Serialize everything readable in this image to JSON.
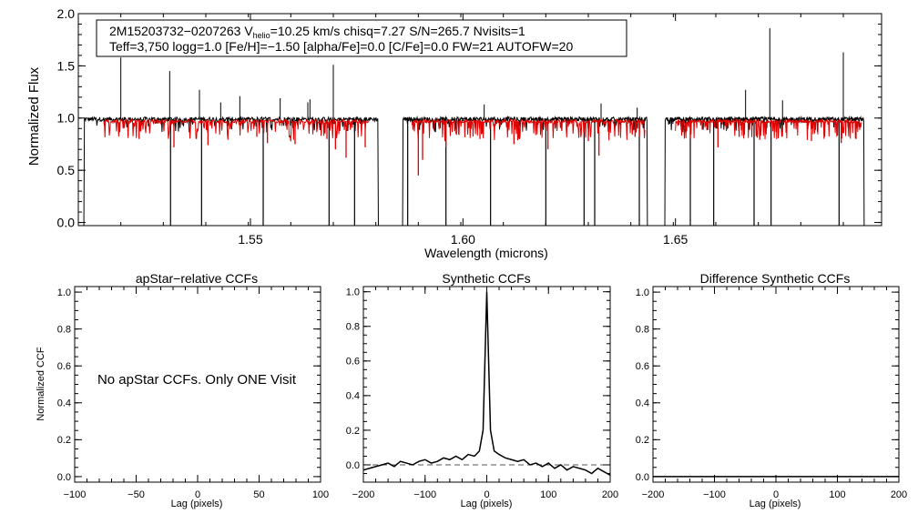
{
  "header": {
    "line1_star": "2M15203732−0207263",
    "line1_v_prefix": "V",
    "line1_v_sub": "helio",
    "line1_rest": "=10.25 km/s  chisq=7.27  S/N=265.7  Nvisits=1",
    "line2": "Teff=3,750 logg=1.0 [Fe/H]=−1.50 [alpha/Fe]=0.0 [C/Fe]=0.0 FW=21 AUTOFW=20"
  },
  "no_ccf_message": "No apStar CCFs.  Only ONE Visit",
  "colors": {
    "observed": "#000000",
    "model": "#e00000",
    "frame": "#000000",
    "dashed": "#555555"
  },
  "chart_data": [
    {
      "type": "line",
      "title": "",
      "xlabel": "Wavelength (microns)",
      "ylabel": "Normalized Flux",
      "xlim": [
        1.5095,
        1.6985
      ],
      "ylim": [
        -0.03,
        2.0
      ],
      "xticks": [
        1.55,
        1.6,
        1.65
      ],
      "xtick_labels": [
        "1.55",
        "1.60",
        "1.65"
      ],
      "yticks": [
        0.0,
        0.5,
        1.0,
        1.5,
        2.0
      ],
      "ytick_labels": [
        "0.0",
        "0.5",
        "1.0",
        "1.5",
        "2.0"
      ],
      "chips": [
        [
          1.5108,
          1.5801
        ],
        [
          1.5858,
          1.6434
        ],
        [
          1.6475,
          1.6944
        ]
      ],
      "series": [
        {
          "continuum": 0.99,
          "spikes": [
            [
              1.5195,
              1.58
            ],
            [
              1.531,
              1.45
            ],
            [
              1.538,
              1.27
            ],
            [
              1.543,
              1.15
            ],
            [
              1.5475,
              1.21
            ],
            [
              1.557,
              1.19
            ],
            [
              1.5635,
              1.15
            ],
            [
              1.5695,
              1.51
            ],
            [
              1.564,
              1.18
            ],
            [
              1.605,
              1.13
            ],
            [
              1.6325,
              1.14
            ],
            [
              1.641,
              1.1
            ],
            [
              1.6665,
              1.27
            ],
            [
              1.6722,
              1.86
            ],
            [
              1.6752,
              1.17
            ],
            [
              1.6895,
              1.63
            ]
          ],
          "bad_pixels": [
            1.5312,
            1.5385,
            1.553,
            1.5685,
            1.5745,
            1.587,
            1.596,
            1.6065,
            1.6195,
            1.6285,
            1.631,
            1.6415,
            1.6535,
            1.659,
            1.6685,
            1.6725,
            1.6885
          ]
        },
        {
          "range_by_chip": [
            [
              1.5155,
              1.5778
            ],
            [
              1.588,
              1.6428
            ],
            [
              1.65,
              1.6938
            ]
          ],
          "continuum": 0.97,
          "deep_absorptions": [
            [
              1.5238,
              0.8
            ],
            [
              1.532,
              0.72
            ],
            [
              1.54,
              0.74
            ],
            [
              1.5515,
              0.82
            ],
            [
              1.554,
              0.76
            ],
            [
              1.5605,
              0.75
            ],
            [
              1.568,
              0.8
            ],
            [
              1.57,
              0.7
            ],
            [
              1.5725,
              0.62
            ],
            [
              1.577,
              0.72
            ],
            [
              1.5895,
              0.45
            ],
            [
              1.5905,
              0.6
            ],
            [
              1.596,
              0.72
            ],
            [
              1.604,
              0.8
            ],
            [
              1.612,
              0.75
            ],
            [
              1.62,
              0.7
            ],
            [
              1.6295,
              0.78
            ],
            [
              1.632,
              0.64
            ],
            [
              1.6405,
              0.82
            ],
            [
              1.6535,
              0.8
            ],
            [
              1.66,
              0.72
            ],
            [
              1.665,
              0.82
            ],
            [
              1.682,
              0.78
            ],
            [
              1.689,
              0.76
            ],
            [
              1.6925,
              0.8
            ]
          ]
        }
      ]
    },
    {
      "type": "line",
      "title": "apStar−relative CCFs",
      "xlabel": "Lag (pixels)",
      "ylabel": "Normalized CCF",
      "xlim": [
        -100,
        100
      ],
      "ylim": [
        -0.03,
        1.03
      ],
      "xticks": [
        -100,
        -50,
        0,
        50,
        100
      ],
      "xtick_labels": [
        "−100",
        "−50",
        "0",
        "50",
        "100"
      ],
      "yticks": [
        0.0,
        0.2,
        0.4,
        0.6,
        0.8,
        1.0
      ],
      "ytick_labels": [
        "0.0",
        "0.2",
        "0.4",
        "0.6",
        "0.8",
        "1.0"
      ],
      "series": []
    },
    {
      "type": "line",
      "title": "Synthetic CCFs",
      "xlabel": "Lag (pixels)",
      "ylabel": "",
      "xlim": [
        -200,
        200
      ],
      "ylim": [
        -0.1,
        1.03
      ],
      "xticks": [
        -200,
        -100,
        0,
        100,
        200
      ],
      "xtick_labels": [
        "−200",
        "−100",
        "0",
        "100",
        "200"
      ],
      "yticks": [
        0.0,
        0.2,
        0.4,
        0.6,
        0.8,
        1.0
      ],
      "ytick_labels": [
        "0.0",
        "0.2",
        "0.4",
        "0.6",
        "0.8",
        "1.0"
      ],
      "reference_line": 0.0,
      "series": [
        {
          "x": [
            -200,
            -190,
            -180,
            -170,
            -160,
            -150,
            -140,
            -130,
            -120,
            -110,
            -100,
            -90,
            -80,
            -70,
            -60,
            -50,
            -40,
            -30,
            -20,
            -12,
            -6,
            -3,
            0,
            3,
            6,
            12,
            20,
            30,
            40,
            50,
            60,
            70,
            80,
            90,
            100,
            110,
            120,
            130,
            140,
            150,
            160,
            170,
            180,
            190,
            200
          ],
          "y": [
            -0.03,
            -0.02,
            -0.01,
            0.0,
            0.01,
            -0.01,
            0.02,
            0.01,
            0.0,
            0.02,
            0.03,
            0.01,
            0.02,
            0.04,
            0.03,
            0.05,
            0.03,
            0.06,
            0.05,
            0.08,
            0.2,
            0.6,
            1.0,
            0.6,
            0.2,
            0.08,
            0.06,
            0.04,
            0.03,
            0.02,
            0.03,
            0.0,
            0.01,
            -0.01,
            0.01,
            -0.02,
            0.0,
            -0.03,
            -0.01,
            -0.02,
            -0.03,
            -0.05,
            -0.02,
            -0.04,
            -0.06
          ]
        }
      ]
    },
    {
      "type": "line",
      "title": "Difference Synthetic CCFs",
      "xlabel": "Lag (pixels)",
      "ylabel": "",
      "xlim": [
        -200,
        200
      ],
      "ylim": [
        -0.03,
        1.03
      ],
      "xticks": [
        -200,
        -100,
        0,
        100,
        200
      ],
      "xtick_labels": [
        "−200",
        "−100",
        "0",
        "100",
        "200"
      ],
      "yticks": [
        0.0,
        0.2,
        0.4,
        0.6,
        0.8,
        1.0
      ],
      "ytick_labels": [
        "0.0",
        "0.2",
        "0.4",
        "0.6",
        "0.8",
        "1.0"
      ],
      "series": [
        {
          "x": [
            -200,
            200
          ],
          "y": [
            0.0,
            0.0
          ]
        }
      ]
    }
  ]
}
